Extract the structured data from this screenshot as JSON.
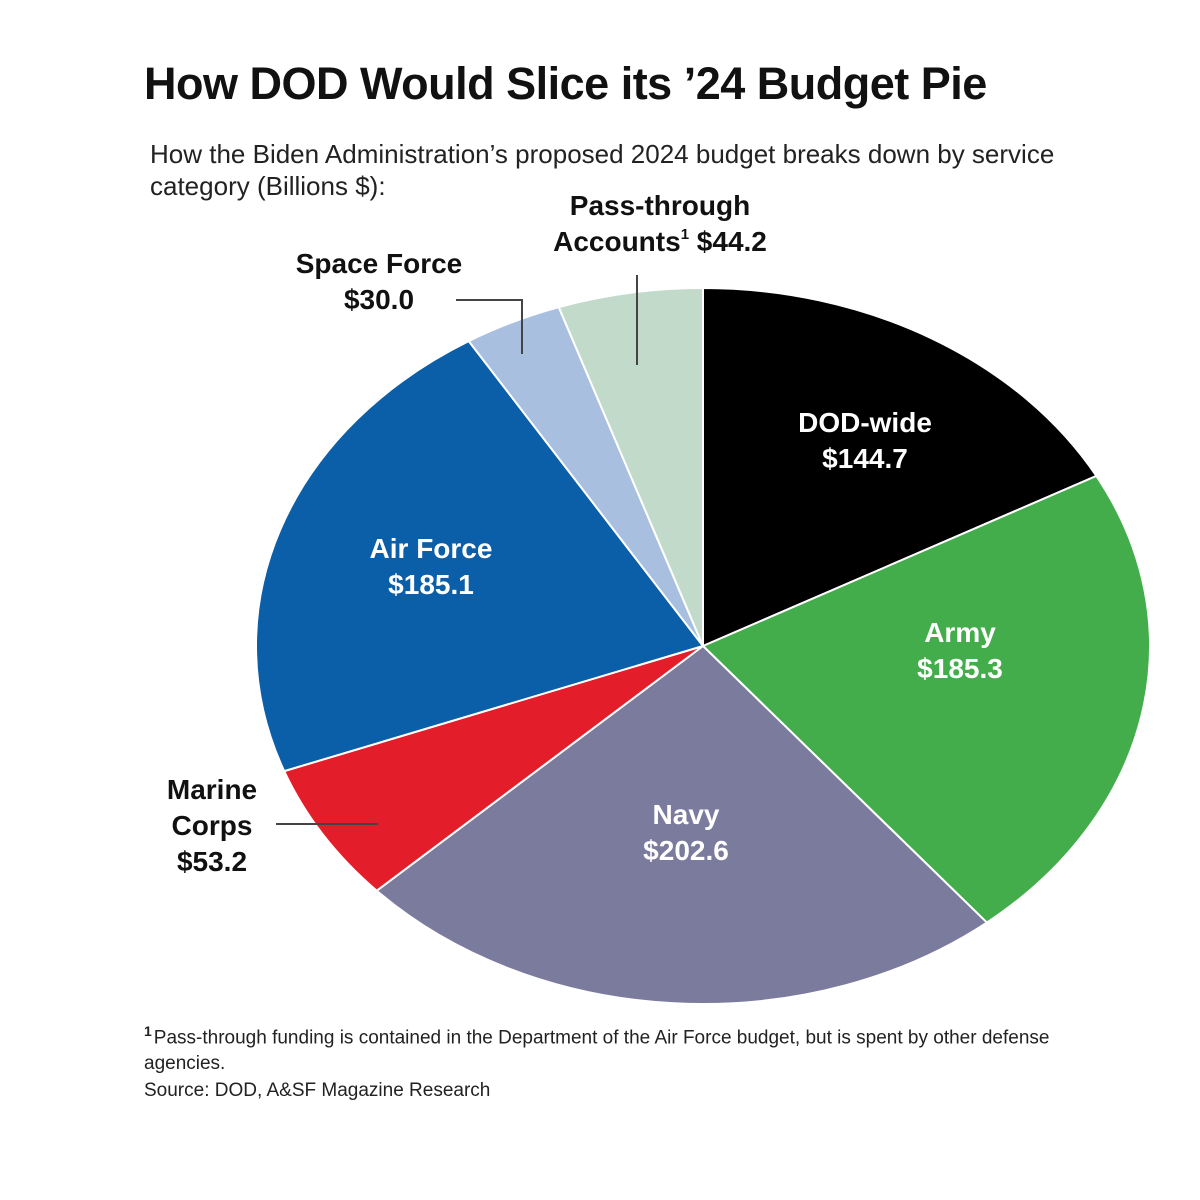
{
  "title": "How DOD Would Slice its ’24 Budget Pie",
  "subtitle": "How the Biden Administration’s proposed 2024 budget breaks down by service category (Billions $):",
  "footnote": {
    "marker": "1",
    "text": "Pass-through funding is contained in the Department of the Air Force budget, but is spent by other defense agencies."
  },
  "source": "Source: DOD, A&SF Magazine Research",
  "chart_data": {
    "type": "pie",
    "unit": "Billions $",
    "start": "12 o'clock",
    "direction": "clockwise",
    "slices": [
      {
        "name": "DOD-wide",
        "value": 144.7,
        "label_lines": [
          "DOD-wide",
          "$144.7"
        ],
        "color": "#000000",
        "label_color": "#ffffff",
        "callout": false
      },
      {
        "name": "Army",
        "value": 185.3,
        "label_lines": [
          "Army",
          "$185.3"
        ],
        "color": "#43ad4b",
        "label_color": "#ffffff",
        "callout": false
      },
      {
        "name": "Navy",
        "value": 202.6,
        "label_lines": [
          "Navy",
          "$202.6"
        ],
        "color": "#7b7b9d",
        "label_color": "#ffffff",
        "callout": false
      },
      {
        "name": "Marine Corps",
        "value": 53.2,
        "label_lines": [
          "Marine",
          "Corps",
          "$53.2"
        ],
        "color": "#e31e2a",
        "label_color": "#111111",
        "callout": true
      },
      {
        "name": "Air Force",
        "value": 185.1,
        "label_lines": [
          "Air Force",
          "$185.1"
        ],
        "color": "#0b5ea8",
        "label_color": "#ffffff",
        "callout": false
      },
      {
        "name": "Space Force",
        "value": 30.0,
        "label_lines": [
          "Space Force",
          "$30.0"
        ],
        "color": "#a9bfe0",
        "label_color": "#111111",
        "callout": true
      },
      {
        "name": "Pass-through Accounts",
        "value": 44.2,
        "label_lines": [
          "Pass-through",
          "Accounts",
          "$44.2"
        ],
        "superscript": "1",
        "color": "#c2dac9",
        "label_color": "#111111",
        "callout": true
      }
    ]
  }
}
